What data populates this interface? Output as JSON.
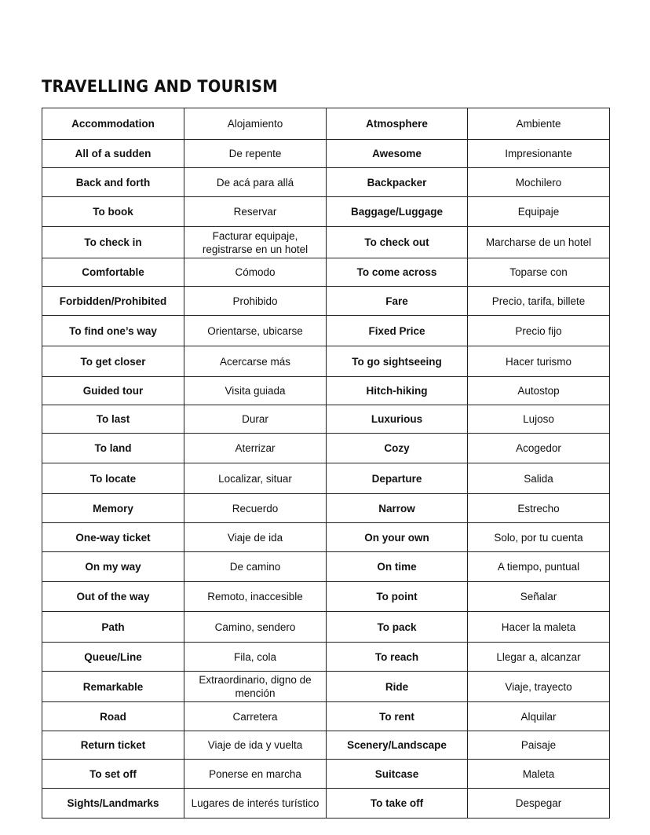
{
  "title": "TRAVELLING AND TOURISM",
  "rows": [
    [
      "Accommodation",
      "Alojamiento",
      "Atmosphere",
      "Ambiente"
    ],
    [
      "All of a sudden",
      "De repente",
      "Awesome",
      "Impresionante"
    ],
    [
      "Back and forth",
      "De acá para allá",
      "Backpacker",
      "Mochilero"
    ],
    [
      "To book",
      "Reservar",
      "Baggage/Luggage",
      "Equipaje"
    ],
    [
      "To check in",
      "Facturar equipaje, registrarse en un hotel",
      "To check out",
      "Marcharse de un hotel"
    ],
    [
      "Comfortable",
      "Cómodo",
      "To come across",
      "Toparse con"
    ],
    [
      "Forbidden/Prohibited",
      "Prohibido",
      "Fare",
      "Precio, tarifa, billete"
    ],
    [
      "To find one’s way",
      "Orientarse, ubicarse",
      "Fixed Price",
      "Precio fijo"
    ],
    [
      "To get closer",
      "Acercarse más",
      "To go sightseeing",
      "Hacer turismo"
    ],
    [
      "Guided tour",
      "Visita guiada",
      "Hitch-hiking",
      "Autostop"
    ],
    [
      "To last",
      "Durar",
      "Luxurious",
      "Lujoso"
    ],
    [
      "To land",
      "Aterrizar",
      "Cozy",
      "Acogedor"
    ],
    [
      "To locate",
      "Localizar, situar",
      "Departure",
      "Salida"
    ],
    [
      "Memory",
      "Recuerdo",
      "Narrow",
      "Estrecho"
    ],
    [
      "One-way ticket",
      "Viaje de ida",
      "On your own",
      "Solo, por tu cuenta"
    ],
    [
      "On my way",
      "De camino",
      "On time",
      "A tiempo, puntual"
    ],
    [
      "Out of the way",
      "Remoto, inaccesible",
      "To point",
      "Señalar"
    ],
    [
      "Path",
      "Camino, sendero",
      "To pack",
      "Hacer la maleta"
    ],
    [
      "Queue/Line",
      "Fila, cola",
      "To reach",
      "Llegar a, alcanzar"
    ],
    [
      "Remarkable",
      "Extraordinario, digno de mención",
      "Ride",
      "Viaje, trayecto"
    ],
    [
      "Road",
      "Carretera",
      "To rent",
      "Alquilar"
    ],
    [
      "Return ticket",
      "Viaje de ida y vuelta",
      "Scenery/Landscape",
      "Paisaje"
    ],
    [
      "To set off",
      "Ponerse en marcha",
      "Suitcase",
      "Maleta"
    ],
    [
      "Sights/Landmarks",
      "Lugares de interés turístico",
      "To take off",
      "Despegar"
    ]
  ]
}
